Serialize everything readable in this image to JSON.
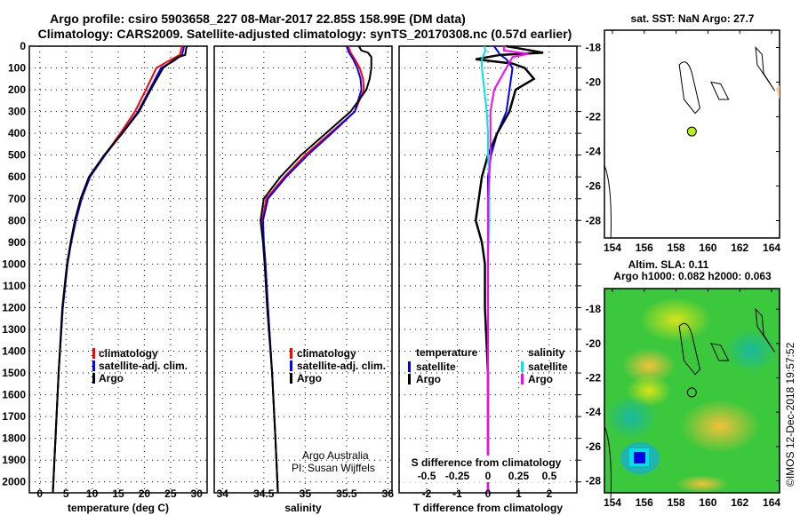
{
  "title_line1": "Argo profile: csiro 5903658_227 08-Mar-2017 22.85S 158.99E (DM data)",
  "title_line2": "Climatology: CARS2009. Satellite-adjusted climatology: synTS_20170308.nc (0.57d earlier)",
  "credit": [
    "Argo Australia",
    "PI: Susan Wijffels"
  ],
  "watermark": "©IMOS 12-Dec-2018 19:57:52",
  "colors": {
    "climatology": "#ff0000",
    "satellite": "#0000ff",
    "argo": "#000000",
    "s_satellite": "#00e5e5",
    "s_argo": "#ff00ff"
  },
  "chart_data": [
    {
      "type": "line",
      "xlabel": "temperature (deg C)",
      "xlim": [
        -2,
        32
      ],
      "xticks": [
        0,
        5,
        10,
        15,
        20,
        25,
        30
      ],
      "ylim": [
        0,
        2050
      ],
      "yticks": [
        0,
        100,
        200,
        300,
        400,
        500,
        600,
        700,
        800,
        900,
        1000,
        1100,
        1200,
        1300,
        1400,
        1500,
        1600,
        1700,
        1800,
        1900,
        2000
      ],
      "grid": true,
      "legend": [
        "climatology",
        "satellite-adj. clim.",
        "Argo"
      ],
      "series": [
        {
          "name": "climatology",
          "depth": [
            0,
            40,
            70,
            100,
            200,
            300,
            400,
            500,
            600,
            700,
            800,
            900,
            1000,
            1200,
            1500,
            1800,
            2050
          ],
          "values": [
            27.2,
            26.8,
            24.5,
            22.3,
            20.3,
            18.2,
            15.4,
            12.4,
            9.6,
            8.0,
            6.9,
            6.0,
            5.3,
            4.4,
            3.6,
            3.0,
            2.5
          ]
        },
        {
          "name": "satellite-adj. clim.",
          "depth": [
            0,
            40,
            70,
            100,
            200,
            300,
            400,
            500,
            600,
            700,
            800,
            900,
            1000,
            1200,
            1500,
            1800,
            2050
          ],
          "values": [
            27.6,
            27.2,
            25.5,
            23.2,
            21.0,
            18.8,
            15.7,
            12.5,
            9.6,
            8.0,
            6.9,
            6.0,
            5.3,
            4.4,
            3.6,
            3.0,
            2.5
          ]
        },
        {
          "name": "Argo",
          "depth": [
            0,
            10,
            40,
            50,
            70,
            100,
            200,
            300,
            400,
            500,
            600,
            700,
            800,
            900,
            1000,
            1200,
            1500,
            1800,
            2050
          ],
          "values": [
            28.2,
            28.0,
            27.8,
            26.5,
            25.2,
            23.6,
            21.2,
            19.0,
            15.8,
            12.3,
            9.4,
            7.8,
            6.7,
            5.9,
            5.2,
            4.3,
            3.6,
            3.0,
            2.5
          ]
        }
      ]
    },
    {
      "type": "line",
      "xlabel": "salinity",
      "xlim": [
        33.9,
        36.05
      ],
      "xticks": [
        34,
        34.5,
        35,
        35.5,
        36
      ],
      "ylim": [
        0,
        2050
      ],
      "grid": true,
      "legend": [
        "climatology",
        "satellite-adj. clim.",
        "Argo"
      ],
      "series": [
        {
          "name": "climatology",
          "depth": [
            0,
            30,
            60,
            100,
            150,
            200,
            300,
            400,
            500,
            600,
            700,
            800,
            900,
            1000,
            1200,
            1500,
            1800,
            2050
          ],
          "values": [
            35.52,
            35.55,
            35.6,
            35.66,
            35.7,
            35.71,
            35.6,
            35.3,
            35.0,
            34.75,
            34.53,
            34.48,
            34.5,
            34.52,
            34.55,
            34.6,
            34.64,
            34.67
          ]
        },
        {
          "name": "satellite-adj. clim.",
          "depth": [
            0,
            30,
            60,
            100,
            150,
            200,
            300,
            400,
            500,
            600,
            700,
            800,
            900,
            1000,
            1200,
            1500,
            1800,
            2050
          ],
          "values": [
            35.5,
            35.53,
            35.58,
            35.63,
            35.67,
            35.68,
            35.6,
            35.32,
            35.03,
            34.77,
            34.55,
            34.49,
            34.5,
            34.52,
            34.55,
            34.6,
            34.64,
            34.67
          ]
        },
        {
          "name": "Argo",
          "depth": [
            0,
            20,
            30,
            50,
            100,
            150,
            200,
            300,
            400,
            500,
            600,
            700,
            800,
            900,
            1000,
            1200,
            1500,
            1800,
            2050
          ],
          "values": [
            35.65,
            35.68,
            35.76,
            35.8,
            35.8,
            35.78,
            35.74,
            35.55,
            35.25,
            34.95,
            34.7,
            34.5,
            34.46,
            34.49,
            34.51,
            34.54,
            34.6,
            34.64,
            34.67
          ]
        }
      ]
    },
    {
      "type": "line",
      "xlabel": "T difference from climatology",
      "xlabel_top": "S difference from climatology",
      "xlim": [
        -2.9,
        2.9
      ],
      "xticks": [
        -2,
        -1,
        0,
        1,
        2
      ],
      "xticks_s": [
        -0.5,
        -0.25,
        0,
        0.25,
        0.5
      ],
      "xticks_s_labels": [
        "-0.5",
        "-0.25",
        "0",
        "0.25",
        "0.5"
      ],
      "ylim": [
        0,
        2050
      ],
      "grid": true,
      "legend_t": {
        "heading": "temperature",
        "items": [
          "satellite",
          "Argo"
        ]
      },
      "legend_s": {
        "heading": "salinity",
        "items": [
          "satellite",
          "Argo"
        ]
      },
      "series": [
        {
          "name": "T satellite",
          "depth": [
            0,
            40,
            60,
            100,
            200,
            300,
            400,
            500,
            600,
            700,
            800,
            900,
            1000,
            1500,
            2050
          ],
          "values": [
            0.2,
            0.4,
            0.6,
            0.8,
            0.7,
            0.6,
            0.3,
            0.1,
            0.0,
            0.0,
            0.0,
            0.0,
            0.0,
            0.0,
            0.0
          ]
        },
        {
          "name": "T Argo",
          "depth": [
            0,
            10,
            30,
            40,
            60,
            80,
            100,
            150,
            200,
            300,
            400,
            500,
            600,
            700,
            800,
            900,
            1000,
            1200,
            1500,
            2050
          ],
          "values": [
            0.6,
            1.0,
            1.8,
            0.4,
            -0.4,
            0.8,
            1.2,
            1.5,
            0.9,
            0.7,
            0.3,
            0.0,
            -0.2,
            -0.3,
            -0.4,
            -0.2,
            -0.1,
            -0.1,
            0.0,
            0.0
          ]
        },
        {
          "name": "S satellite",
          "depth": [
            0,
            20,
            60,
            100,
            200,
            300,
            400,
            500,
            600,
            800,
            1000,
            1500,
            2050
          ],
          "values": [
            -0.03,
            -0.02,
            -0.05,
            -0.05,
            -0.03,
            -0.01,
            0.0,
            0.0,
            0.01,
            0.01,
            0.0,
            0.0,
            0.0
          ]
        },
        {
          "name": "S Argo",
          "depth": [
            0,
            20,
            35,
            50,
            100,
            200,
            300,
            400,
            500,
            600,
            700,
            800,
            1000,
            1500,
            2050
          ],
          "values": [
            0.13,
            0.13,
            0.33,
            0.2,
            0.15,
            0.05,
            0.02,
            0.02,
            0.02,
            0.01,
            0.0,
            0.0,
            0.0,
            0.0,
            0.0
          ]
        }
      ]
    },
    {
      "type": "scatter",
      "title": "sat. SST: NaN Argo: 27.7",
      "xticks": [
        154,
        156,
        158,
        160,
        162,
        164
      ],
      "yticks": [
        -18,
        -20,
        -22,
        -24,
        -26,
        -28
      ],
      "xlim": [
        153.5,
        164.5
      ],
      "ylim": [
        -29,
        -17
      ],
      "points": [
        {
          "lon": 158.99,
          "lat": -22.85
        }
      ]
    },
    {
      "type": "heatmap",
      "title1": "Altim. SLA: 0.11",
      "title2": "Argo h1000: 0.082 h2000: 0.063",
      "xticks": [
        154,
        156,
        158,
        160,
        162,
        164
      ],
      "yticks": [
        -18,
        -20,
        -22,
        -24,
        -26,
        -28
      ],
      "xlim": [
        153.5,
        164.5
      ],
      "ylim": [
        -28.7,
        -16.8
      ],
      "points": [
        {
          "lon": 158.99,
          "lat": -22.85
        }
      ]
    }
  ]
}
